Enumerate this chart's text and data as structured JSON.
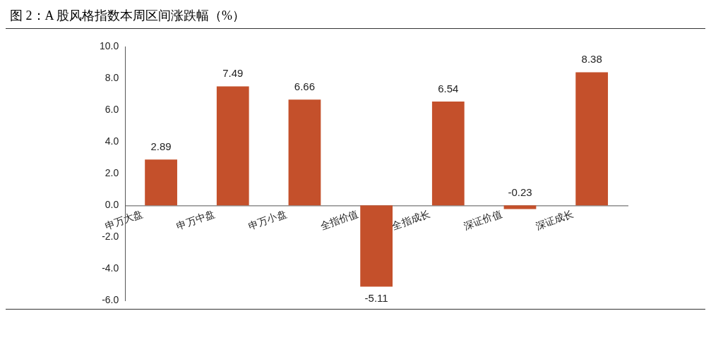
{
  "chart_data": {
    "type": "bar",
    "title": "图 2：A 股风格指数本周区间涨跌幅（%）",
    "categories": [
      "申万大盘",
      "申万中盘",
      "申万小盘",
      "全指价值",
      "全指成长",
      "深证价值",
      "深证成长"
    ],
    "values": [
      2.89,
      7.49,
      6.66,
      -5.11,
      6.54,
      -0.23,
      8.38
    ],
    "color": "#c4502b",
    "ylim": [
      -6,
      10
    ],
    "yticks": [
      {
        "value": -6,
        "label": "-6.0"
      },
      {
        "value": -4,
        "label": "-4.0"
      },
      {
        "value": -2,
        "label": "-2.0"
      },
      {
        "value": 0,
        "label": "0.0"
      },
      {
        "value": 2,
        "label": "2.0"
      },
      {
        "value": 4,
        "label": "4.0"
      },
      {
        "value": 6,
        "label": "6.0"
      },
      {
        "value": 8,
        "label": "8.0"
      },
      {
        "value": 10,
        "label": "10.0"
      }
    ],
    "grid": false,
    "legend": false,
    "data_labels": true
  }
}
